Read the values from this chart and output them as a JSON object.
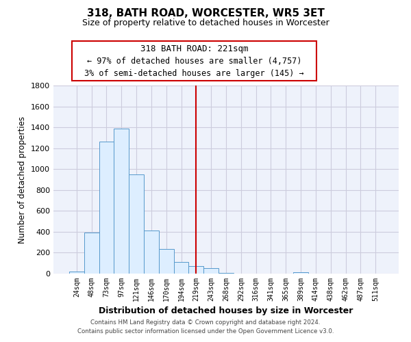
{
  "title": "318, BATH ROAD, WORCESTER, WR5 3ET",
  "subtitle": "Size of property relative to detached houses in Worcester",
  "xlabel": "Distribution of detached houses by size in Worcester",
  "ylabel": "Number of detached properties",
  "bin_labels": [
    "24sqm",
    "48sqm",
    "73sqm",
    "97sqm",
    "121sqm",
    "146sqm",
    "170sqm",
    "194sqm",
    "219sqm",
    "243sqm",
    "268sqm",
    "292sqm",
    "316sqm",
    "341sqm",
    "365sqm",
    "389sqm",
    "414sqm",
    "438sqm",
    "462sqm",
    "487sqm",
    "511sqm"
  ],
  "bar_heights": [
    20,
    390,
    1260,
    1390,
    950,
    415,
    235,
    110,
    70,
    55,
    5,
    2,
    1,
    1,
    1,
    15,
    1,
    1,
    1,
    1,
    1
  ],
  "bar_color": "#ddeeff",
  "bar_edge_color": "#5599cc",
  "vline_x": 8,
  "vline_color": "#cc0000",
  "ylim": [
    0,
    1800
  ],
  "yticks": [
    0,
    200,
    400,
    600,
    800,
    1000,
    1200,
    1400,
    1600,
    1800
  ],
  "annotation_title": "318 BATH ROAD: 221sqm",
  "annotation_line1": "← 97% of detached houses are smaller (4,757)",
  "annotation_line2": "3% of semi-detached houses are larger (145) →",
  "annotation_box_color": "#ffffff",
  "annotation_box_edge": "#cc0000",
  "footer_line1": "Contains HM Land Registry data © Crown copyright and database right 2024.",
  "footer_line2": "Contains public sector information licensed under the Open Government Licence v3.0.",
  "bg_color": "#ffffff",
  "grid_color": "#ccccdd"
}
